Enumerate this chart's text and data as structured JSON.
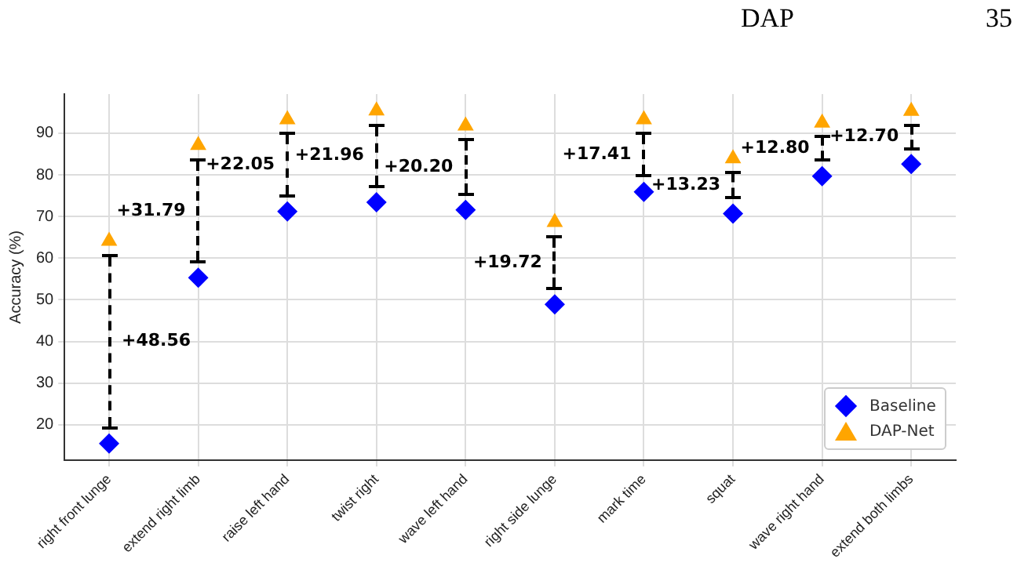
{
  "chart_data": {
    "type": "scatter",
    "ylabel": "Accuracy (%)",
    "categories": [
      "right front lunge",
      "extend right limb",
      "raise left hand",
      "twist right",
      "wave left hand",
      "right side lunge",
      "mark time",
      "squat",
      "wave right hand",
      "extend both limbs"
    ],
    "series": [
      {
        "name": "Baseline",
        "color": "#0000ff",
        "marker": "diamond",
        "values": [
          15.5,
          55.3,
          71.2,
          73.4,
          71.6,
          48.9,
          75.9,
          70.7,
          79.7,
          82.6
        ]
      },
      {
        "name": "DAP-Net",
        "color": "#ffa500",
        "marker": "triangle",
        "values": [
          64.1,
          87.1,
          93.3,
          95.4,
          91.8,
          68.6,
          93.3,
          83.9,
          92.5,
          95.3
        ]
      }
    ],
    "ylim": [
      11.5,
      99.4
    ],
    "yticks": [
      20,
      30,
      40,
      50,
      60,
      70,
      80,
      90
    ],
    "grid": true,
    "legend": "bottom right",
    "annotations": [
      "DAP",
      "35",
      "+48.56",
      "+31.79",
      "+22.05",
      "+21.96",
      "+20.20",
      "+19.72",
      "+17.41",
      "+13.23",
      "+12.80",
      "+12.70"
    ]
  }
}
